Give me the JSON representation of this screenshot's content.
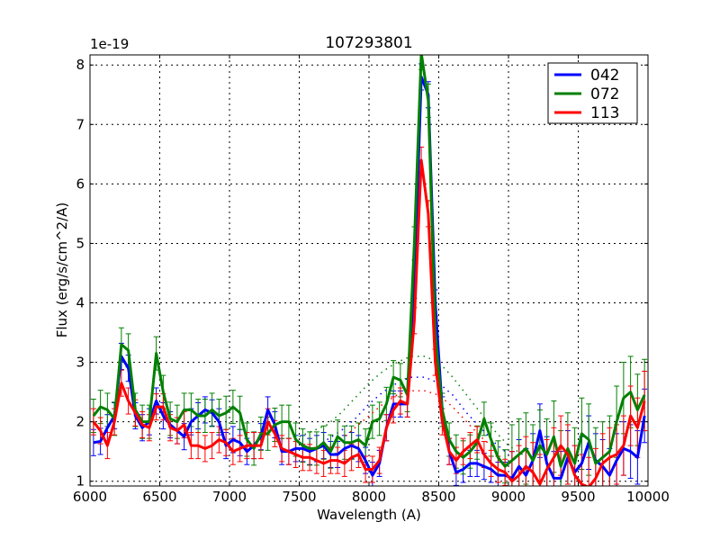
{
  "chart_data": {
    "type": "line",
    "title": "107293801",
    "xlabel": "Wavelength (A)",
    "ylabel": "Flux (erg/s/cm^2/A)",
    "y_offset_label": "1e-19",
    "xlim": [
      6000,
      10000
    ],
    "ylim": [
      0.92,
      8.17
    ],
    "xticks": [
      6000,
      6500,
      7000,
      7500,
      8000,
      8500,
      9000,
      9500,
      10000
    ],
    "yticks": [
      1,
      2,
      3,
      4,
      5,
      6,
      7,
      8
    ],
    "grid": true,
    "legend_position": "top-right",
    "x": [
      6025,
      6075,
      6125,
      6175,
      6225,
      6275,
      6325,
      6375,
      6425,
      6475,
      6525,
      6575,
      6625,
      6675,
      6725,
      6775,
      6825,
      6875,
      6925,
      6975,
      7025,
      7075,
      7125,
      7175,
      7225,
      7275,
      7325,
      7375,
      7425,
      7475,
      7525,
      7575,
      7625,
      7675,
      7725,
      7775,
      7825,
      7875,
      7925,
      7975,
      8025,
      8075,
      8125,
      8175,
      8225,
      8275,
      8325,
      8375,
      8425,
      8475,
      8525,
      8575,
      8625,
      8675,
      8725,
      8775,
      8825,
      8875,
      8925,
      8975,
      9025,
      9075,
      9125,
      9175,
      9225,
      9275,
      9325,
      9375,
      9425,
      9475,
      9525,
      9575,
      9625,
      9675,
      9725,
      9775,
      9825,
      9875,
      9925,
      9975
    ],
    "series": [
      {
        "name": "042",
        "color": "#0000ff",
        "values": [
          1.65,
          1.67,
          1.9,
          2.1,
          3.1,
          2.9,
          2.1,
          1.9,
          2.0,
          2.35,
          2.1,
          1.95,
          1.85,
          1.75,
          2.0,
          2.1,
          2.2,
          2.15,
          2.0,
          1.6,
          1.7,
          1.65,
          1.5,
          1.6,
          1.75,
          2.2,
          1.95,
          1.5,
          1.5,
          1.55,
          1.55,
          1.5,
          1.55,
          1.6,
          1.45,
          1.45,
          1.55,
          1.6,
          1.55,
          1.35,
          1.1,
          1.3,
          1.9,
          2.3,
          2.3,
          2.3,
          4.3,
          7.8,
          7.5,
          4.0,
          2.2,
          1.5,
          1.15,
          1.2,
          1.3,
          1.3,
          1.25,
          1.2,
          1.1,
          1.1,
          1.05,
          1.25,
          1.1,
          1.35,
          1.85,
          1.3,
          1.05,
          1.05,
          1.4,
          1.15,
          1.3,
          1.65,
          1.35,
          1.25,
          1.1,
          1.35,
          1.55,
          1.5,
          1.4,
          2.1
        ],
        "yerr": {
          "below_9000": 0.22,
          "above_9000": 0.45
        },
        "model": {
          "x": [
            7700,
            7800,
            7900,
            8000,
            8100,
            8200,
            8300,
            8400,
            8500,
            8600,
            8700,
            8800,
            8900,
            9000
          ],
          "y": [
            1.7,
            1.85,
            2.05,
            2.3,
            2.5,
            2.65,
            2.75,
            2.75,
            2.65,
            2.45,
            2.15,
            1.9,
            1.65,
            1.45
          ]
        }
      },
      {
        "name": "072",
        "color": "#008000",
        "values": [
          2.1,
          2.25,
          2.2,
          2.05,
          3.3,
          3.2,
          2.2,
          2.0,
          2.0,
          3.15,
          2.5,
          2.05,
          2.0,
          2.2,
          2.2,
          2.1,
          2.1,
          2.2,
          2.1,
          2.15,
          2.25,
          2.15,
          1.7,
          1.55,
          1.8,
          1.8,
          1.95,
          2.0,
          2.0,
          1.7,
          1.6,
          1.55,
          1.55,
          1.65,
          1.5,
          1.75,
          1.65,
          1.65,
          1.7,
          1.6,
          2.0,
          2.05,
          2.3,
          2.75,
          2.7,
          2.45,
          5.0,
          8.2,
          7.4,
          3.5,
          2.2,
          1.7,
          1.5,
          1.4,
          1.5,
          1.65,
          2.05,
          1.7,
          1.4,
          1.25,
          1.35,
          1.45,
          1.55,
          1.35,
          1.6,
          1.45,
          1.75,
          1.25,
          1.55,
          1.3,
          1.8,
          1.7,
          1.3,
          1.4,
          1.5,
          2.0,
          2.4,
          2.5,
          2.2,
          2.45
        ],
        "yerr": {
          "below_9000": 0.28,
          "above_9000": 0.6
        },
        "model": {
          "x": [
            7500,
            7600,
            7700,
            7800,
            7900,
            8000,
            8100,
            8200,
            8300,
            8400,
            8500,
            8600,
            8700,
            8800,
            8900,
            9000,
            9100
          ],
          "y": [
            1.75,
            1.85,
            1.95,
            2.15,
            2.4,
            2.65,
            2.85,
            3.0,
            3.1,
            3.1,
            3.0,
            2.75,
            2.45,
            2.15,
            1.85,
            1.6,
            1.45
          ]
        }
      },
      {
        "name": "113",
        "color": "#ff0000",
        "values": [
          2.0,
          1.85,
          1.6,
          2.0,
          2.65,
          2.35,
          2.15,
          1.95,
          1.9,
          2.25,
          2.25,
          1.9,
          1.85,
          1.95,
          1.6,
          1.6,
          1.55,
          1.6,
          1.7,
          1.65,
          1.5,
          1.55,
          1.6,
          1.6,
          1.6,
          2.0,
          1.8,
          1.55,
          1.5,
          1.45,
          1.4,
          1.4,
          1.35,
          1.3,
          1.35,
          1.35,
          1.3,
          1.4,
          1.45,
          1.2,
          1.2,
          1.35,
          1.9,
          2.2,
          2.35,
          2.3,
          3.7,
          6.4,
          5.5,
          3.0,
          2.0,
          1.5,
          1.35,
          1.5,
          1.6,
          1.7,
          1.45,
          1.3,
          1.2,
          1.15,
          1.0,
          1.1,
          1.25,
          1.15,
          0.95,
          1.2,
          1.4,
          1.6,
          1.45,
          1.1,
          0.95,
          0.9,
          1.05,
          1.3,
          1.4,
          1.45,
          1.6,
          2.1,
          1.9,
          2.35
        ],
        "yerr": {
          "below_9000": 0.22,
          "above_9000": 0.5
        },
        "model": {
          "x": [
            7800,
            7900,
            8000,
            8100,
            8200,
            8300,
            8400,
            8500,
            8600,
            8700,
            8800,
            8900
          ],
          "y": [
            1.7,
            1.9,
            2.1,
            2.3,
            2.45,
            2.52,
            2.52,
            2.45,
            2.25,
            2.0,
            1.75,
            1.55
          ]
        }
      }
    ]
  }
}
